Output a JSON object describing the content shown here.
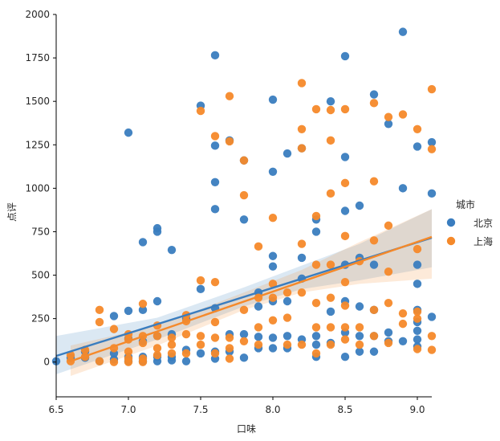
{
  "chart_data": {
    "type": "scatter",
    "title": "",
    "xlabel": "口味",
    "ylabel": "点评",
    "xlim": [
      6.5,
      9.1
    ],
    "ylim": [
      -200,
      2000
    ],
    "xticks": [
      6.5,
      7.0,
      7.5,
      8.0,
      8.5,
      9.0
    ],
    "xtick_labels": [
      "6.5",
      "7.0",
      "7.5",
      "8.0",
      "8.5",
      "9.0"
    ],
    "yticks": [
      0,
      250,
      500,
      750,
      1000,
      1250,
      1500,
      1750,
      2000
    ],
    "ytick_labels": [
      "0",
      "250",
      "500",
      "750",
      "1000",
      "1250",
      "1500",
      "1750",
      "2000"
    ],
    "grid": false,
    "legend": {
      "title": "城市",
      "placement": "right",
      "entries": [
        "北京",
        "上海"
      ]
    },
    "series": [
      {
        "name": "北京",
        "color": "#3a7dbf",
        "regression": {
          "x": [
            6.5,
            9.1
          ],
          "y": [
            35,
            715
          ]
        },
        "band_lower": [
          [
            6.5,
            -70
          ],
          [
            7.2,
            130
          ],
          [
            7.8,
            320
          ],
          [
            8.2,
            420
          ],
          [
            8.6,
            470
          ],
          [
            9.1,
            545
          ]
        ],
        "band_upper": [
          [
            6.5,
            150
          ],
          [
            7.2,
            255
          ],
          [
            7.8,
            430
          ],
          [
            8.2,
            555
          ],
          [
            8.6,
            680
          ],
          [
            9.1,
            880
          ]
        ],
        "points": [
          [
            6.5,
            5
          ],
          [
            6.6,
            25
          ],
          [
            6.7,
            60
          ],
          [
            6.7,
            25
          ],
          [
            6.8,
            5
          ],
          [
            6.9,
            15
          ],
          [
            6.9,
            50
          ],
          [
            6.9,
            265
          ],
          [
            7.0,
            5
          ],
          [
            7.0,
            30
          ],
          [
            7.0,
            135
          ],
          [
            7.0,
            1320
          ],
          [
            7.0,
            295
          ],
          [
            7.1,
            5
          ],
          [
            7.1,
            30
          ],
          [
            7.1,
            120
          ],
          [
            7.1,
            300
          ],
          [
            7.1,
            690
          ],
          [
            7.2,
            5
          ],
          [
            7.2,
            30
          ],
          [
            7.2,
            150
          ],
          [
            7.2,
            350
          ],
          [
            7.2,
            750
          ],
          [
            7.2,
            770
          ],
          [
            7.3,
            10
          ],
          [
            7.3,
            30
          ],
          [
            7.3,
            160
          ],
          [
            7.3,
            645
          ],
          [
            7.4,
            5
          ],
          [
            7.4,
            70
          ],
          [
            7.4,
            250
          ],
          [
            7.5,
            50
          ],
          [
            7.5,
            420
          ],
          [
            7.5,
            1475
          ],
          [
            7.6,
            20
          ],
          [
            7.6,
            60
          ],
          [
            7.6,
            310
          ],
          [
            7.6,
            880
          ],
          [
            7.6,
            1035
          ],
          [
            7.6,
            1245
          ],
          [
            7.6,
            1765
          ],
          [
            7.7,
            60
          ],
          [
            7.7,
            160
          ],
          [
            7.7,
            1275
          ],
          [
            7.8,
            25
          ],
          [
            7.8,
            160
          ],
          [
            7.8,
            820
          ],
          [
            7.8,
            1160
          ],
          [
            7.9,
            80
          ],
          [
            7.9,
            145
          ],
          [
            7.9,
            320
          ],
          [
            7.9,
            400
          ],
          [
            8.0,
            80
          ],
          [
            8.0,
            140
          ],
          [
            8.0,
            350
          ],
          [
            8.0,
            550
          ],
          [
            8.0,
            610
          ],
          [
            8.0,
            1095
          ],
          [
            8.0,
            1510
          ],
          [
            8.1,
            80
          ],
          [
            8.1,
            150
          ],
          [
            8.1,
            350
          ],
          [
            8.1,
            1200
          ],
          [
            8.2,
            130
          ],
          [
            8.2,
            480
          ],
          [
            8.2,
            600
          ],
          [
            8.2,
            1230
          ],
          [
            8.3,
            30
          ],
          [
            8.3,
            100
          ],
          [
            8.3,
            150
          ],
          [
            8.3,
            750
          ],
          [
            8.3,
            820
          ],
          [
            8.4,
            110
          ],
          [
            8.4,
            290
          ],
          [
            8.4,
            1500
          ],
          [
            8.5,
            30
          ],
          [
            8.5,
            170
          ],
          [
            8.5,
            350
          ],
          [
            8.5,
            560
          ],
          [
            8.5,
            870
          ],
          [
            8.5,
            1180
          ],
          [
            8.5,
            1760
          ],
          [
            8.6,
            60
          ],
          [
            8.6,
            150
          ],
          [
            8.6,
            320
          ],
          [
            8.6,
            600
          ],
          [
            8.6,
            900
          ],
          [
            8.7,
            60
          ],
          [
            8.7,
            150
          ],
          [
            8.7,
            300
          ],
          [
            8.7,
            560
          ],
          [
            8.7,
            1540
          ],
          [
            8.8,
            120
          ],
          [
            8.8,
            170
          ],
          [
            8.8,
            1370
          ],
          [
            8.9,
            120
          ],
          [
            8.9,
            1000
          ],
          [
            8.9,
            1900
          ],
          [
            9.0,
            90
          ],
          [
            9.0,
            130
          ],
          [
            9.0,
            180
          ],
          [
            9.0,
            230
          ],
          [
            9.0,
            300
          ],
          [
            9.0,
            450
          ],
          [
            9.0,
            560
          ],
          [
            9.0,
            1240
          ],
          [
            9.1,
            260
          ],
          [
            9.1,
            970
          ],
          [
            9.1,
            1265
          ]
        ]
      },
      {
        "name": "上海",
        "color": "#f5892a",
        "regression": {
          "x": [
            6.6,
            9.1
          ],
          "y": [
            5,
            720
          ]
        },
        "band_lower": [
          [
            6.6,
            -80
          ],
          [
            7.2,
            95
          ],
          [
            7.8,
            300
          ],
          [
            8.2,
            400
          ],
          [
            8.6,
            450
          ],
          [
            9.1,
            480
          ]
        ],
        "band_upper": [
          [
            6.6,
            95
          ],
          [
            7.2,
            210
          ],
          [
            7.8,
            400
          ],
          [
            8.2,
            530
          ],
          [
            8.6,
            690
          ],
          [
            9.1,
            880
          ]
        ],
        "points": [
          [
            6.6,
            5
          ],
          [
            6.6,
            40
          ],
          [
            6.7,
            30
          ],
          [
            6.7,
            70
          ],
          [
            6.8,
            5
          ],
          [
            6.8,
            230
          ],
          [
            6.8,
            300
          ],
          [
            6.9,
            0
          ],
          [
            6.9,
            80
          ],
          [
            6.9,
            190
          ],
          [
            7.0,
            0
          ],
          [
            7.0,
            20
          ],
          [
            7.0,
            60
          ],
          [
            7.0,
            130
          ],
          [
            7.0,
            160
          ],
          [
            7.1,
            0
          ],
          [
            7.1,
            20
          ],
          [
            7.1,
            110
          ],
          [
            7.1,
            150
          ],
          [
            7.1,
            335
          ],
          [
            7.2,
            40
          ],
          [
            7.2,
            80
          ],
          [
            7.2,
            150
          ],
          [
            7.2,
            210
          ],
          [
            7.3,
            50
          ],
          [
            7.3,
            100
          ],
          [
            7.3,
            140
          ],
          [
            7.4,
            50
          ],
          [
            7.4,
            160
          ],
          [
            7.4,
            235
          ],
          [
            7.4,
            270
          ],
          [
            7.5,
            100
          ],
          [
            7.5,
            150
          ],
          [
            7.5,
            470
          ],
          [
            7.5,
            1445
          ],
          [
            7.6,
            50
          ],
          [
            7.6,
            140
          ],
          [
            7.6,
            230
          ],
          [
            7.6,
            460
          ],
          [
            7.6,
            1300
          ],
          [
            7.7,
            20
          ],
          [
            7.7,
            80
          ],
          [
            7.7,
            140
          ],
          [
            7.7,
            1530
          ],
          [
            7.7,
            1270
          ],
          [
            7.8,
            120
          ],
          [
            7.8,
            300
          ],
          [
            7.8,
            960
          ],
          [
            7.8,
            1160
          ],
          [
            7.9,
            100
          ],
          [
            7.9,
            200
          ],
          [
            7.9,
            370
          ],
          [
            7.9,
            665
          ],
          [
            8.0,
            240
          ],
          [
            8.0,
            370
          ],
          [
            8.0,
            450
          ],
          [
            8.0,
            830
          ],
          [
            8.1,
            100
          ],
          [
            8.1,
            255
          ],
          [
            8.1,
            400
          ],
          [
            8.2,
            100
          ],
          [
            8.2,
            400
          ],
          [
            8.2,
            680
          ],
          [
            8.2,
            1230
          ],
          [
            8.2,
            1340
          ],
          [
            8.2,
            1605
          ],
          [
            8.3,
            50
          ],
          [
            8.3,
            200
          ],
          [
            8.3,
            340
          ],
          [
            8.3,
            560
          ],
          [
            8.3,
            840
          ],
          [
            8.3,
            1455
          ],
          [
            8.4,
            100
          ],
          [
            8.4,
            200
          ],
          [
            8.4,
            370
          ],
          [
            8.4,
            560
          ],
          [
            8.4,
            970
          ],
          [
            8.4,
            1275
          ],
          [
            8.4,
            1450
          ],
          [
            8.5,
            130
          ],
          [
            8.5,
            200
          ],
          [
            8.5,
            325
          ],
          [
            8.5,
            460
          ],
          [
            8.5,
            725
          ],
          [
            8.5,
            1030
          ],
          [
            8.5,
            1455
          ],
          [
            8.6,
            100
          ],
          [
            8.6,
            200
          ],
          [
            8.6,
            580
          ],
          [
            8.7,
            150
          ],
          [
            8.7,
            300
          ],
          [
            8.7,
            700
          ],
          [
            8.7,
            1040
          ],
          [
            8.7,
            1490
          ],
          [
            8.8,
            110
          ],
          [
            8.8,
            340
          ],
          [
            8.8,
            520
          ],
          [
            8.8,
            785
          ],
          [
            8.8,
            1410
          ],
          [
            8.9,
            220
          ],
          [
            8.9,
            280
          ],
          [
            8.9,
            1425
          ],
          [
            9.0,
            75
          ],
          [
            9.0,
            250
          ],
          [
            9.0,
            290
          ],
          [
            9.0,
            650
          ],
          [
            9.0,
            1340
          ],
          [
            9.1,
            70
          ],
          [
            9.1,
            150
          ],
          [
            9.1,
            1225
          ],
          [
            9.1,
            1570
          ]
        ]
      }
    ]
  }
}
